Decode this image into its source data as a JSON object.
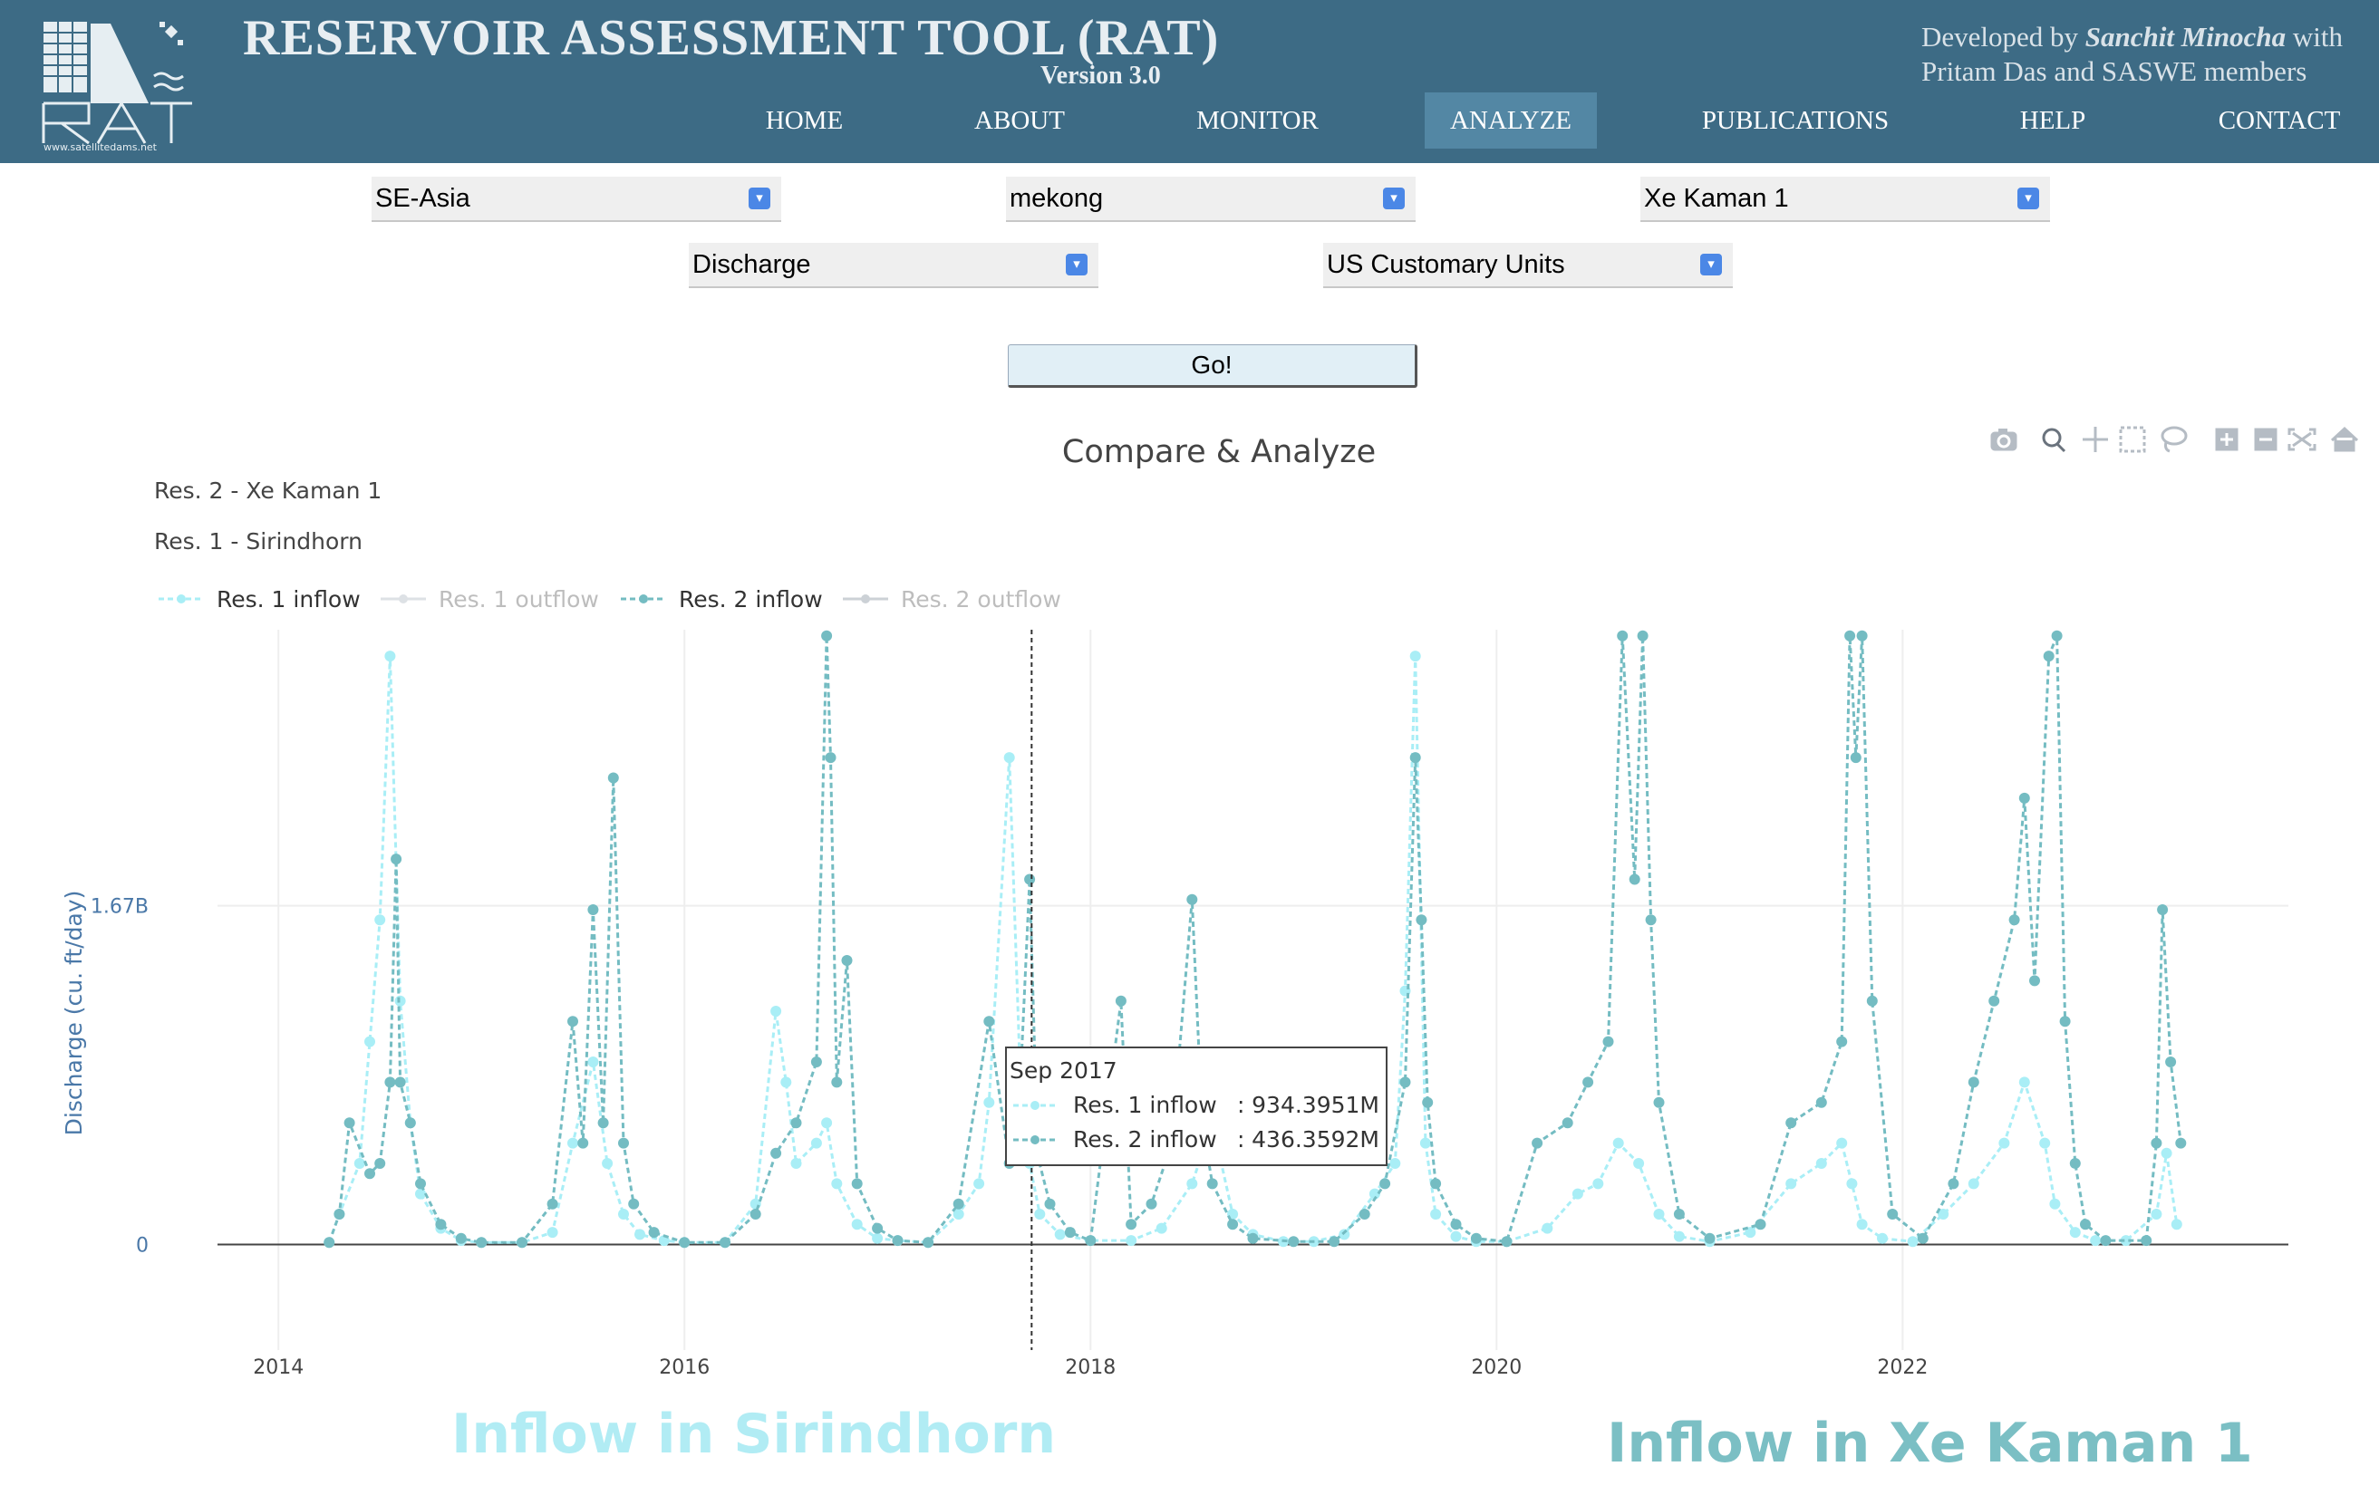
{
  "header": {
    "title": "RESERVOIR ASSESSMENT TOOL (RAT)",
    "version": "Version 3.0",
    "logo_text": "www.satellitedams.net",
    "credits_line1_prefix": "Developed by",
    "credits_author": "Sanchit Minocha",
    "credits_line1_suffix": "with",
    "credits_line2": "Pritam Das and SASWE members",
    "nav": [
      {
        "label": "HOME",
        "active": false
      },
      {
        "label": "ABOUT",
        "active": false
      },
      {
        "label": "MONITOR",
        "active": false
      },
      {
        "label": "ANALYZE",
        "active": true
      },
      {
        "label": "PUBLICATIONS",
        "active": false
      },
      {
        "label": "HELP",
        "active": false
      },
      {
        "label": "CONTACT",
        "active": false
      }
    ]
  },
  "filters": {
    "region": "SE-Asia",
    "basin": "mekong",
    "reservoir": "Xe Kaman 1",
    "variable": "Discharge",
    "units": "US Customary Units",
    "go_label": "Go!"
  },
  "modebar_icons": [
    "camera-icon",
    "zoom-icon",
    "pan-icon",
    "box-select-icon",
    "lasso-icon",
    "zoom-in-icon",
    "zoom-out-icon",
    "autoscale-icon",
    "reset-axes-icon"
  ],
  "chart_data": {
    "type": "line",
    "title": "Compare & Analyze",
    "header_labels": [
      "Res. 2 - Xe Kaman 1",
      "Res. 1 - Sirindhorn"
    ],
    "ylabel": "Discharge (cu. ft/day)",
    "y_tick_labels": [
      "0",
      "1.67B"
    ],
    "y_ticks": [
      0,
      1670000000
    ],
    "ylim": [
      -520000000,
      3030000000
    ],
    "x_tick_labels": [
      "2014",
      "2016",
      "2018",
      "2020",
      "2022"
    ],
    "x_ticks": [
      2014,
      2016,
      2018,
      2020,
      2022
    ],
    "xlim": [
      2013.7,
      2023.9
    ],
    "grid": true,
    "legend_position": "top-left",
    "colors": {
      "res1_inflow": "#a9eef6",
      "res2_inflow": "#74bcc2",
      "res1_outflow": "#c3c9d0",
      "res2_outflow": "#a3acb6"
    },
    "series": [
      {
        "name": "Res. 1 inflow",
        "visible": true,
        "x": [
          2014.25,
          2014.3,
          2014.4,
          2014.45,
          2014.5,
          2014.55,
          2014.6,
          2014.65,
          2014.7,
          2014.8,
          2014.9,
          2015.0,
          2015.2,
          2015.35,
          2015.45,
          2015.55,
          2015.62,
          2015.7,
          2015.78,
          2015.9,
          2016.0,
          2016.2,
          2016.35,
          2016.45,
          2016.5,
          2016.55,
          2016.65,
          2016.7,
          2016.75,
          2016.85,
          2016.95,
          2017.05,
          2017.2,
          2017.35,
          2017.45,
          2017.5,
          2017.6,
          2017.65,
          2017.7,
          2017.75,
          2017.85,
          2018.0,
          2018.2,
          2018.35,
          2018.5,
          2018.6,
          2018.7,
          2018.8,
          2018.95,
          2019.1,
          2019.25,
          2019.4,
          2019.5,
          2019.55,
          2019.6,
          2019.65,
          2019.7,
          2019.8,
          2019.9,
          2020.05,
          2020.25,
          2020.4,
          2020.5,
          2020.6,
          2020.7,
          2020.8,
          2020.9,
          2021.05,
          2021.25,
          2021.45,
          2021.6,
          2021.7,
          2021.75,
          2021.8,
          2021.9,
          2022.05,
          2022.2,
          2022.35,
          2022.5,
          2022.6,
          2022.7,
          2022.75,
          2022.85,
          2022.95,
          2023.1,
          2023.25,
          2023.3,
          2023.35
        ],
        "y": [
          10000000,
          150000000,
          400000000,
          1000000000,
          1600000000,
          2900000000,
          1200000000,
          600000000,
          250000000,
          80000000,
          20000000,
          10000000,
          10000000,
          60000000,
          500000000,
          900000000,
          400000000,
          150000000,
          50000000,
          20000000,
          10000000,
          10000000,
          200000000,
          1150000000,
          800000000,
          400000000,
          500000000,
          600000000,
          300000000,
          100000000,
          30000000,
          20000000,
          10000000,
          150000000,
          300000000,
          700000000,
          2400000000,
          934395100,
          400000000,
          150000000,
          50000000,
          20000000,
          20000000,
          80000000,
          300000000,
          600000000,
          150000000,
          50000000,
          15000000,
          15000000,
          50000000,
          250000000,
          400000000,
          1250000000,
          2900000000,
          500000000,
          150000000,
          40000000,
          15000000,
          15000000,
          80000000,
          250000000,
          300000000,
          500000000,
          400000000,
          150000000,
          40000000,
          15000000,
          60000000,
          300000000,
          400000000,
          500000000,
          300000000,
          100000000,
          30000000,
          15000000,
          150000000,
          300000000,
          500000000,
          800000000,
          500000000,
          200000000,
          60000000,
          20000000,
          20000000,
          150000000,
          450000000,
          100000000
        ]
      },
      {
        "name": "Res. 1 outflow",
        "visible": false,
        "x": [],
        "y": []
      },
      {
        "name": "Res. 2 inflow",
        "visible": true,
        "x": [
          2014.25,
          2014.3,
          2014.35,
          2014.45,
          2014.5,
          2014.55,
          2014.58,
          2014.6,
          2014.65,
          2014.7,
          2014.8,
          2014.9,
          2015.0,
          2015.2,
          2015.35,
          2015.45,
          2015.5,
          2015.55,
          2015.6,
          2015.65,
          2015.7,
          2015.75,
          2015.85,
          2016.0,
          2016.2,
          2016.35,
          2016.45,
          2016.55,
          2016.65,
          2016.7,
          2016.72,
          2016.75,
          2016.8,
          2016.85,
          2016.95,
          2017.05,
          2017.2,
          2017.35,
          2017.5,
          2017.6,
          2017.65,
          2017.7,
          2017.74,
          2017.8,
          2017.9,
          2018.0,
          2018.15,
          2018.2,
          2018.3,
          2018.4,
          2018.5,
          2018.55,
          2018.6,
          2018.7,
          2018.8,
          2019.0,
          2019.2,
          2019.35,
          2019.45,
          2019.55,
          2019.6,
          2019.63,
          2019.66,
          2019.7,
          2019.8,
          2019.9,
          2020.05,
          2020.2,
          2020.35,
          2020.45,
          2020.55,
          2020.62,
          2020.68,
          2020.72,
          2020.76,
          2020.8,
          2020.9,
          2021.05,
          2021.3,
          2021.45,
          2021.6,
          2021.7,
          2021.74,
          2021.77,
          2021.8,
          2021.85,
          2021.95,
          2022.1,
          2022.25,
          2022.35,
          2022.45,
          2022.55,
          2022.6,
          2022.65,
          2022.72,
          2022.76,
          2022.8,
          2022.85,
          2022.9,
          2023.0,
          2023.2,
          2023.25,
          2023.28,
          2023.32,
          2023.37
        ],
        "y": [
          10000000,
          150000000,
          600000000,
          350000000,
          400000000,
          800000000,
          1900000000,
          800000000,
          600000000,
          300000000,
          100000000,
          30000000,
          10000000,
          10000000,
          200000000,
          1100000000,
          500000000,
          1650000000,
          600000000,
          2300000000,
          500000000,
          200000000,
          60000000,
          10000000,
          10000000,
          150000000,
          450000000,
          600000000,
          900000000,
          3000000000,
          2400000000,
          800000000,
          1400000000,
          300000000,
          80000000,
          20000000,
          10000000,
          200000000,
          1100000000,
          400000000,
          700000000,
          1800000000,
          436359200,
          200000000,
          60000000,
          20000000,
          1200000000,
          100000000,
          200000000,
          500000000,
          1700000000,
          600000000,
          300000000,
          100000000,
          30000000,
          15000000,
          15000000,
          150000000,
          300000000,
          800000000,
          2400000000,
          1600000000,
          700000000,
          300000000,
          100000000,
          30000000,
          15000000,
          500000000,
          600000000,
          800000000,
          1000000000,
          3000000000,
          1800000000,
          3000000000,
          1600000000,
          700000000,
          150000000,
          30000000,
          100000000,
          600000000,
          700000000,
          1000000000,
          3000000000,
          2400000000,
          3000000000,
          1200000000,
          150000000,
          30000000,
          300000000,
          800000000,
          1200000000,
          1600000000,
          2200000000,
          1300000000,
          2900000000,
          3000000000,
          1100000000,
          400000000,
          100000000,
          20000000,
          20000000,
          500000000,
          1650000000,
          900000000,
          500000000
        ]
      },
      {
        "name": "Res. 2 outflow",
        "visible": false,
        "x": [],
        "y": []
      }
    ],
    "hover": {
      "x": 2017.71,
      "date_label": "Sep 2017",
      "rows": [
        {
          "name": "Res. 1 inflow",
          "value": "934.3951M"
        },
        {
          "name": "Res. 2 inflow",
          "value": "436.3592M"
        }
      ]
    }
  },
  "annotations": {
    "left": "Inflow in Sirindhorn",
    "right": "Inflow in Xe Kaman 1"
  }
}
